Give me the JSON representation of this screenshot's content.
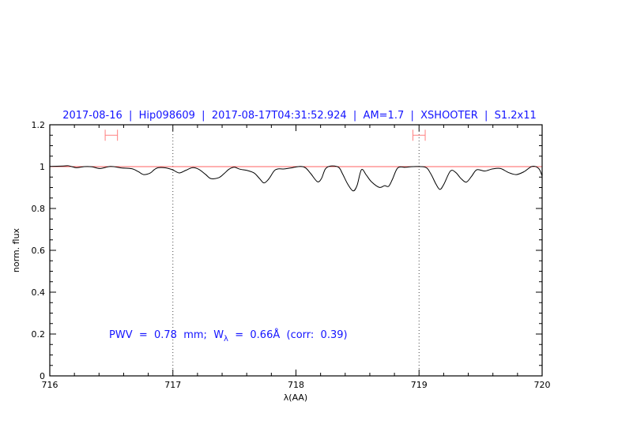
{
  "chart_data": {
    "type": "line",
    "title": "2017-08-16  |  Hip098609  |  2017-08-17T04:31:52.924  |  AM=1.7  |  XSHOOTER  |  S1.2x11",
    "xlabel": "λ(AA)",
    "ylabel": "norm. flux",
    "xlim": [
      716,
      720
    ],
    "ylim": [
      0,
      1.2
    ],
    "x_ticks": [
      "716",
      "717",
      "718",
      "719",
      "720"
    ],
    "x_tick_values": [
      716,
      717,
      718,
      719,
      720
    ],
    "y_ticks": [
      "0",
      "0.2",
      "0.4",
      "0.6",
      "0.8",
      "1",
      "1.2"
    ],
    "y_tick_values": [
      0,
      0.2,
      0.4,
      0.6,
      0.8,
      1,
      1.2
    ],
    "x_minor_step": 0.2,
    "y_minor_step": 0.05,
    "grid": false,
    "reference_line": {
      "y": 1.0,
      "color": "#ff6060"
    },
    "vertical_dotted_lines": [
      717,
      719
    ],
    "error_bars": [
      {
        "x_range": [
          716.45,
          716.55
        ],
        "y": 1.15,
        "color": "#ff8080"
      },
      {
        "x_range": [
          718.95,
          719.05
        ],
        "y": 1.15,
        "color": "#ff8080"
      }
    ],
    "annotation": {
      "prefix": "PWV  =  0.78  mm;  W",
      "subscript": "λ",
      "suffix": "  =  0.66Å  (corr:  0.39)"
    },
    "title_color": "#1414ff",
    "line_color": "#000000",
    "series": [
      {
        "x": [
          716.0,
          716.109,
          716.152,
          716.216,
          716.281,
          716.345,
          716.409,
          716.494,
          716.58,
          716.666,
          716.719,
          716.762,
          716.815,
          716.848,
          716.88,
          716.944,
          716.997,
          717.051,
          717.104,
          717.158,
          717.211,
          717.265,
          717.308,
          717.372,
          717.415,
          717.457,
          717.5,
          717.543,
          717.607,
          717.661,
          717.704,
          717.74,
          717.779,
          717.822,
          717.854,
          717.907,
          717.971,
          718.035,
          718.078,
          718.121,
          718.174,
          718.207,
          718.239,
          718.282,
          718.346,
          718.378,
          718.421,
          718.464,
          718.496,
          718.532,
          718.571,
          718.613,
          718.677,
          718.72,
          718.753,
          718.785,
          718.827,
          718.891,
          718.956,
          719.052,
          719.095,
          719.138,
          719.17,
          719.202,
          719.255,
          719.298,
          719.341,
          719.384,
          719.427,
          719.469,
          719.534,
          719.597,
          719.662,
          719.726,
          719.79,
          719.854,
          719.918,
          719.972,
          720.0
        ],
        "y": [
          1.001,
          1.003,
          1.004,
          0.995,
          1.0,
          0.999,
          0.991,
          1.001,
          0.994,
          0.99,
          0.976,
          0.962,
          0.969,
          0.985,
          0.995,
          0.994,
          0.985,
          0.97,
          0.982,
          0.995,
          0.987,
          0.963,
          0.943,
          0.947,
          0.966,
          0.988,
          0.997,
          0.988,
          0.981,
          0.969,
          0.943,
          0.922,
          0.941,
          0.979,
          0.989,
          0.989,
          0.995,
          1.001,
          0.994,
          0.966,
          0.928,
          0.943,
          0.989,
          1.003,
          0.997,
          0.966,
          0.916,
          0.884,
          0.909,
          0.985,
          0.96,
          0.928,
          0.901,
          0.909,
          0.906,
          0.941,
          0.994,
          0.997,
          1.0,
          0.997,
          0.966,
          0.916,
          0.891,
          0.916,
          0.979,
          0.972,
          0.943,
          0.926,
          0.954,
          0.985,
          0.979,
          0.989,
          0.991,
          0.972,
          0.962,
          0.976,
          1.001,
          0.991,
          0.955
        ]
      }
    ]
  }
}
